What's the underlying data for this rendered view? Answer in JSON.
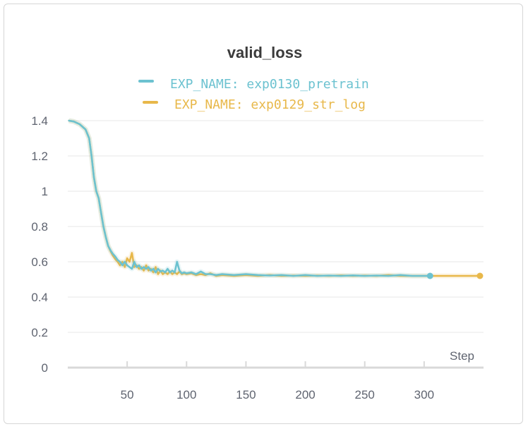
{
  "chart_data": {
    "type": "line",
    "title": "valid_loss",
    "xlabel": "Step",
    "ylabel": "",
    "xlim": [
      0,
      350
    ],
    "ylim": [
      0,
      1.4
    ],
    "x_ticks": [
      50,
      100,
      150,
      200,
      250,
      300
    ],
    "x_tick_labels": [
      "50",
      "100",
      "150",
      "200",
      "250",
      "300"
    ],
    "y_ticks": [
      0,
      0.2,
      0.4,
      0.6,
      0.8,
      1,
      1.2,
      1.4
    ],
    "y_tick_labels": [
      "0",
      "0.2",
      "0.4",
      "0.6",
      "0.8",
      "1",
      "1.2",
      "1.4"
    ],
    "grid": true,
    "legend_position": "top-center",
    "series": [
      {
        "name": "EXP_NAME: exp0129_str_log",
        "color": "#e8b84a",
        "x": [
          1,
          5,
          10,
          15,
          18,
          20,
          22,
          24,
          26,
          28,
          30,
          32,
          34,
          36,
          38,
          40,
          42,
          44,
          46,
          48,
          50,
          52,
          54,
          56,
          58,
          60,
          62,
          64,
          66,
          68,
          70,
          72,
          74,
          76,
          78,
          80,
          82,
          84,
          86,
          88,
          90,
          92,
          94,
          96,
          98,
          100,
          104,
          108,
          112,
          116,
          120,
          125,
          130,
          140,
          150,
          160,
          170,
          180,
          190,
          200,
          210,
          220,
          230,
          240,
          250,
          260,
          270,
          280,
          290,
          300,
          310,
          320,
          330,
          347
        ],
        "y": [
          1.4,
          1.395,
          1.38,
          1.35,
          1.3,
          1.2,
          1.08,
          1.0,
          0.96,
          0.88,
          0.8,
          0.74,
          0.69,
          0.66,
          0.635,
          0.615,
          0.6,
          0.58,
          0.6,
          0.57,
          0.62,
          0.6,
          0.65,
          0.57,
          0.58,
          0.56,
          0.57,
          0.55,
          0.58,
          0.55,
          0.56,
          0.54,
          0.57,
          0.53,
          0.55,
          0.53,
          0.54,
          0.53,
          0.545,
          0.53,
          0.54,
          0.53,
          0.545,
          0.53,
          0.535,
          0.53,
          0.535,
          0.525,
          0.53,
          0.525,
          0.535,
          0.52,
          0.525,
          0.52,
          0.525,
          0.52,
          0.525,
          0.52,
          0.522,
          0.52,
          0.522,
          0.52,
          0.523,
          0.52,
          0.522,
          0.52,
          0.525,
          0.52,
          0.52,
          0.52,
          0.52,
          0.52,
          0.52,
          0.52
        ]
      },
      {
        "name": "EXP_NAME: exp0130_pretrain",
        "color": "#6cc2d0",
        "x": [
          1,
          5,
          10,
          15,
          18,
          20,
          22,
          24,
          26,
          28,
          30,
          32,
          34,
          36,
          38,
          40,
          42,
          44,
          46,
          48,
          50,
          52,
          54,
          56,
          58,
          60,
          62,
          64,
          66,
          68,
          70,
          72,
          74,
          76,
          78,
          80,
          82,
          84,
          86,
          88,
          90,
          92,
          94,
          96,
          98,
          100,
          104,
          108,
          112,
          116,
          120,
          125,
          130,
          140,
          150,
          160,
          170,
          180,
          190,
          200,
          210,
          220,
          230,
          240,
          250,
          260,
          270,
          280,
          290,
          300,
          305
        ],
        "y": [
          1.4,
          1.395,
          1.38,
          1.35,
          1.3,
          1.2,
          1.08,
          1.0,
          0.96,
          0.88,
          0.8,
          0.74,
          0.69,
          0.665,
          0.645,
          0.63,
          0.61,
          0.6,
          0.58,
          0.6,
          0.58,
          0.57,
          0.56,
          0.6,
          0.57,
          0.58,
          0.56,
          0.57,
          0.56,
          0.57,
          0.55,
          0.56,
          0.54,
          0.56,
          0.545,
          0.55,
          0.54,
          0.56,
          0.54,
          0.55,
          0.54,
          0.6,
          0.55,
          0.535,
          0.54,
          0.535,
          0.54,
          0.53,
          0.545,
          0.53,
          0.53,
          0.525,
          0.53,
          0.525,
          0.53,
          0.525,
          0.522,
          0.525,
          0.52,
          0.525,
          0.52,
          0.522,
          0.52,
          0.523,
          0.52,
          0.522,
          0.52,
          0.525,
          0.52,
          0.52,
          0.52
        ]
      }
    ]
  }
}
